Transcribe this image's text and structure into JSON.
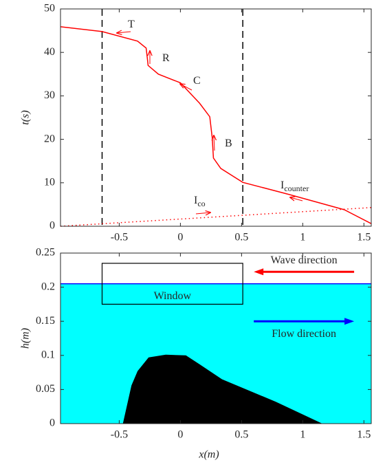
{
  "chart_data": [
    {
      "type": "line",
      "ylabel": "t(s)",
      "xlim": [
        -0.98,
        1.56
      ],
      "ylim": [
        0,
        50
      ],
      "xticks": [
        -0.5,
        0,
        0.5,
        1,
        1.5
      ],
      "yticks": [
        0,
        10,
        20,
        30,
        40,
        50
      ],
      "vlines": [
        -0.64,
        0.51
      ],
      "series": [
        {
          "color": "#ff0000",
          "style": "solid",
          "x": [
            -0.98,
            -0.64,
            -0.35,
            -0.28,
            -0.27,
            -0.264,
            -0.18,
            0,
            0.157,
            0.24,
            0.26,
            0.27,
            0.33,
            0.51,
            0.89,
            1.34,
            1.56
          ],
          "values": [
            45.9,
            44.8,
            42.6,
            41,
            38.6,
            37,
            35,
            33,
            28.3,
            25.2,
            20.4,
            15.7,
            13.3,
            10.1,
            7.3,
            3.8,
            0.6
          ]
        },
        {
          "color": "#ff0000",
          "style": "dotted",
          "x": [
            -0.98,
            1.56
          ],
          "values": [
            0,
            4.3
          ]
        }
      ],
      "annotations": [
        {
          "text": "T"
        },
        {
          "text": "R"
        },
        {
          "text": "C"
        },
        {
          "text": "B"
        },
        {
          "text": "I",
          "sub": "counter"
        },
        {
          "text": "I",
          "sub": "co"
        }
      ]
    },
    {
      "type": "area",
      "xlabel": "x(m)",
      "ylabel": "h(m)",
      "xlim": [
        -0.98,
        1.56
      ],
      "ylim": [
        0,
        0.25
      ],
      "xticks": [
        -0.5,
        0,
        0.5,
        1,
        1.5
      ],
      "yticks": [
        0,
        0.05,
        0.1,
        0.15,
        0.2,
        0.25
      ],
      "water_level": 0.205,
      "water_color": "#00ffff",
      "surface_color": "#0000ff",
      "bed_color": "#000000",
      "bed": {
        "x": [
          -0.47,
          -0.4,
          -0.35,
          -0.26,
          -0.12,
          0.045,
          0.157,
          0.34,
          0.78,
          1.16
        ],
        "values": [
          0,
          0.056,
          0.077,
          0.097,
          0.101,
          0.1,
          0.087,
          0.065,
          0.032,
          0
        ]
      },
      "window": {
        "label": "Window",
        "x": [
          -0.64,
          0.51
        ],
        "y": [
          0.175,
          0.235
        ]
      },
      "arrows": [
        {
          "label": "Wave direction",
          "color": "#ff0000",
          "from": 1.42,
          "to": 0.6,
          "y": 0.2225
        },
        {
          "label": "Flow direction",
          "color": "#0000ff",
          "from": 0.6,
          "to": 1.42,
          "y": 0.15
        }
      ]
    }
  ]
}
